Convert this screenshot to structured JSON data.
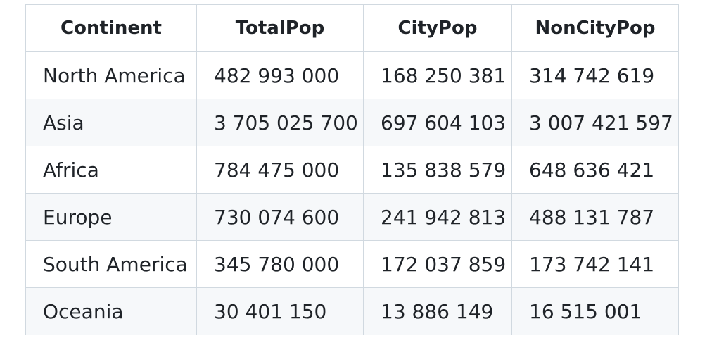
{
  "table": {
    "headers": [
      "Continent",
      "TotalPop",
      "CityPop",
      "NonCityPop"
    ],
    "rows": [
      [
        "North America",
        "482 993 000",
        "168 250 381",
        "314 742 619"
      ],
      [
        "Asia",
        "3 705 025 700",
        "697 604 103",
        "3 007 421 597"
      ],
      [
        "Africa",
        "784 475 000",
        "135 838 579",
        "648 636 421"
      ],
      [
        "Europe",
        "730 074 600",
        "241 942 813",
        "488 131 787"
      ],
      [
        "South America",
        "345 780 000",
        "172 037 859",
        "173 742 141"
      ],
      [
        "Oceania",
        "30 401 150",
        "13 886 149",
        "16 515 001"
      ]
    ]
  },
  "colors": {
    "border": "#d1d9e0",
    "stripe": "#f6f8fa",
    "text": "#1f2328"
  }
}
